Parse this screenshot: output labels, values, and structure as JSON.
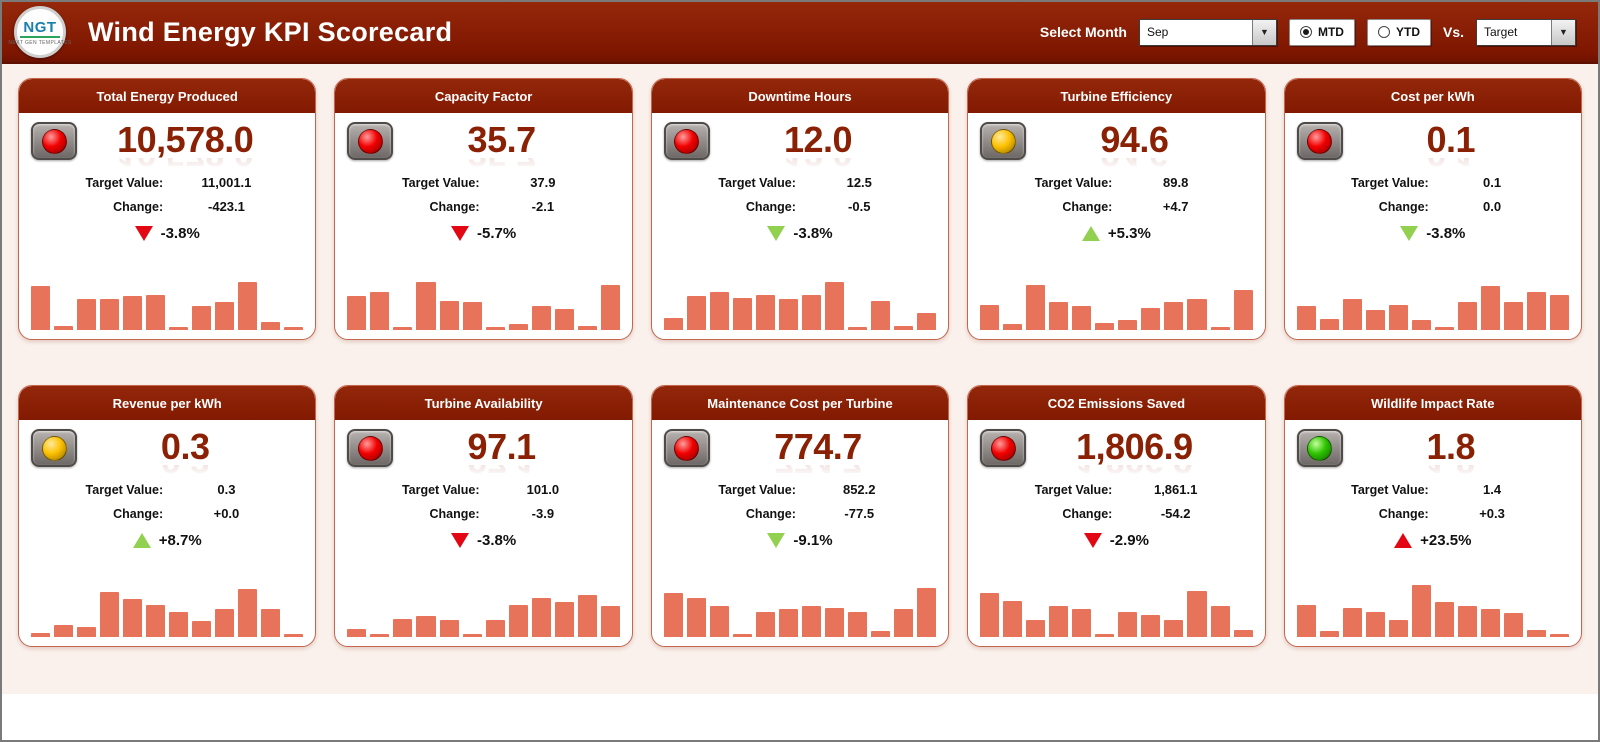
{
  "header": {
    "logo_text": "NGT",
    "logo_subtext": "NEXT GEN TEMPLATES",
    "title": "Wind Energy KPI Scorecard",
    "select_month_label": "Select Month",
    "month_value": "Sep",
    "period_mtd": "MTD",
    "period_ytd": "YTD",
    "period_selected": "MTD",
    "vs_label": "Vs.",
    "vs_value": "Target"
  },
  "labels": {
    "target_label": "Target Value:",
    "change_label": "Change:"
  },
  "colors": {
    "accent_dark_red": "#8B2104",
    "bar_salmon": "#E8735B",
    "trend_red": "#E30613",
    "trend_green": "#92D050",
    "light_red": "#F20000",
    "light_yellow": "#FDC100",
    "light_green": "#2EC400",
    "page_bg": "#FAF1EC"
  },
  "cards": [
    {
      "title": "Total Energy Produced",
      "light": "red",
      "value": "10,578.0",
      "target": "11,001.1",
      "change": "-423.1",
      "trend": {
        "direction": "down",
        "color": "red",
        "pct": "-3.8%"
      },
      "spark": [
        0.78,
        0.08,
        0.55,
        0.55,
        0.6,
        0.62,
        0.05,
        0.42,
        0.5,
        0.85,
        0.15,
        0.06
      ]
    },
    {
      "title": "Capacity Factor",
      "light": "red",
      "value": "35.7",
      "target": "37.9",
      "change": "-2.1",
      "trend": {
        "direction": "down",
        "color": "red",
        "pct": "-5.7%"
      },
      "spark": [
        0.6,
        0.68,
        0.05,
        0.85,
        0.52,
        0.5,
        0.05,
        0.1,
        0.42,
        0.38,
        0.08,
        0.8
      ]
    },
    {
      "title": "Downtime Hours",
      "light": "red",
      "value": "12.0",
      "target": "12.5",
      "change": "-0.5",
      "trend": {
        "direction": "down",
        "color": "green",
        "pct": "-3.8%"
      },
      "spark": [
        0.22,
        0.6,
        0.68,
        0.58,
        0.62,
        0.55,
        0.62,
        0.85,
        0.06,
        0.52,
        0.08,
        0.3
      ]
    },
    {
      "title": "Turbine Efficiency",
      "light": "yellow",
      "value": "94.6",
      "target": "89.8",
      "change": "+4.7",
      "trend": {
        "direction": "up",
        "color": "green",
        "pct": "+5.3%"
      },
      "spark": [
        0.45,
        0.1,
        0.8,
        0.5,
        0.42,
        0.12,
        0.18,
        0.4,
        0.5,
        0.55,
        0.06,
        0.72
      ]
    },
    {
      "title": "Cost per kWh",
      "light": "red",
      "value": "0.1",
      "target": "0.1",
      "change": "0.0",
      "trend": {
        "direction": "down",
        "color": "green",
        "pct": "-3.8%"
      },
      "spark": [
        0.42,
        0.2,
        0.55,
        0.35,
        0.45,
        0.18,
        0.06,
        0.5,
        0.78,
        0.5,
        0.68,
        0.62
      ]
    },
    {
      "title": "Revenue per kWh",
      "light": "yellow",
      "value": "0.3",
      "target": "0.3",
      "change": "+0.0",
      "trend": {
        "direction": "up",
        "color": "green",
        "pct": "+8.7%"
      },
      "spark": [
        0.08,
        0.22,
        0.18,
        0.8,
        0.68,
        0.58,
        0.45,
        0.28,
        0.5,
        0.85,
        0.5,
        0.05
      ]
    },
    {
      "title": "Turbine Availability",
      "light": "red",
      "value": "97.1",
      "target": "101.0",
      "change": "-3.9",
      "trend": {
        "direction": "down",
        "color": "red",
        "pct": "-3.8%"
      },
      "spark": [
        0.15,
        0.05,
        0.32,
        0.38,
        0.3,
        0.05,
        0.3,
        0.58,
        0.7,
        0.62,
        0.75,
        0.55
      ]
    },
    {
      "title": "Maintenance Cost per Turbine",
      "light": "red",
      "value": "774.7",
      "target": "852.2",
      "change": "-77.5",
      "trend": {
        "direction": "down",
        "color": "green",
        "pct": "-9.1%"
      },
      "spark": [
        0.78,
        0.7,
        0.55,
        0.05,
        0.45,
        0.5,
        0.55,
        0.52,
        0.45,
        0.1,
        0.5,
        0.88
      ]
    },
    {
      "title": "CO2 Emissions Saved",
      "light": "red",
      "value": "1,806.9",
      "target": "1,861.1",
      "change": "-54.2",
      "trend": {
        "direction": "down",
        "color": "red",
        "pct": "-2.9%"
      },
      "spark": [
        0.78,
        0.65,
        0.3,
        0.55,
        0.5,
        0.06,
        0.45,
        0.4,
        0.3,
        0.82,
        0.55,
        0.12
      ]
    },
    {
      "title": "Wildlife Impact Rate",
      "light": "green",
      "value": "1.8",
      "target": "1.4",
      "change": "+0.3",
      "trend": {
        "direction": "up",
        "color": "red",
        "pct": "+23.5%"
      },
      "spark": [
        0.58,
        0.1,
        0.52,
        0.45,
        0.3,
        0.92,
        0.62,
        0.55,
        0.5,
        0.42,
        0.12,
        0.05
      ]
    }
  ]
}
